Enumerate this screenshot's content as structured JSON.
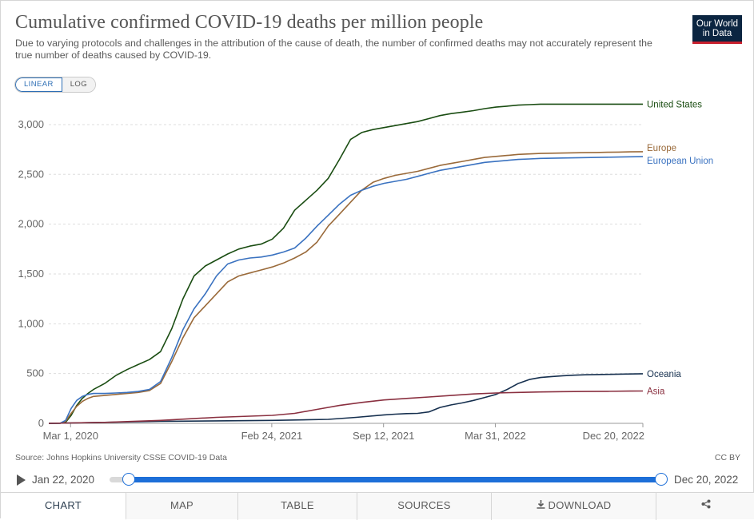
{
  "header": {
    "title": "Cumulative confirmed COVID-19 deaths per million people",
    "subtitle": "Due to varying protocols and challenges in the attribution of the cause of death, the number of confirmed deaths may not accurately represent the true number of deaths caused by COVID-19.",
    "logo_line1": "Our World",
    "logo_line2": "in Data"
  },
  "scale_toggle": {
    "linear": "LINEAR",
    "log": "LOG",
    "selected": "LINEAR"
  },
  "chart_data": {
    "type": "line",
    "title": "Cumulative confirmed COVID-19 deaths per million people",
    "xlabel": "",
    "ylabel": "",
    "x_range": [
      0,
      1063
    ],
    "x_unit": "days since Jan 22, 2020",
    "ylim": [
      0,
      3200
    ],
    "yticks": [
      0,
      500,
      1000,
      1500,
      2000,
      2500,
      3000
    ],
    "ytick_labels": [
      "0",
      "500",
      "1,000",
      "1,500",
      "2,000",
      "2,500",
      "3,000"
    ],
    "xticks": [
      39,
      399,
      599,
      799,
      1063
    ],
    "xtick_labels": [
      "Mar 1, 2020",
      "Feb 24, 2021",
      "Sep 12, 2021",
      "Mar 31, 2022",
      "Dec 20, 2022"
    ],
    "grid": "horizontal dashed",
    "legend": "right end labels",
    "series": [
      {
        "name": "United States",
        "color": "#1a4d12",
        "x": [
          0,
          20,
          30,
          40,
          50,
          60,
          70,
          80,
          100,
          120,
          140,
          160,
          180,
          200,
          220,
          240,
          260,
          280,
          300,
          320,
          340,
          360,
          380,
          400,
          420,
          440,
          460,
          480,
          500,
          520,
          540,
          560,
          580,
          600,
          620,
          640,
          660,
          680,
          700,
          720,
          740,
          760,
          780,
          800,
          820,
          840,
          860,
          880,
          900,
          920,
          940,
          960,
          980,
          1000,
          1020,
          1040,
          1063
        ],
        "y": [
          0,
          0,
          10,
          80,
          180,
          250,
          300,
          340,
          400,
          480,
          540,
          590,
          640,
          720,
          950,
          1250,
          1480,
          1580,
          1640,
          1700,
          1750,
          1780,
          1800,
          1850,
          1960,
          2140,
          2240,
          2340,
          2460,
          2650,
          2850,
          2920,
          2950,
          2970,
          2990,
          3010,
          3030,
          3060,
          3090,
          3110,
          3125,
          3140,
          3160,
          3175,
          3185,
          3195,
          3200,
          3205,
          3205,
          3205,
          3205,
          3205,
          3205,
          3205,
          3205,
          3205,
          3205
        ]
      },
      {
        "name": "Europe",
        "color": "#9a6a3a",
        "x": [
          0,
          20,
          30,
          40,
          50,
          60,
          70,
          80,
          100,
          120,
          140,
          160,
          180,
          200,
          220,
          240,
          260,
          280,
          300,
          320,
          340,
          360,
          380,
          400,
          420,
          440,
          460,
          480,
          500,
          520,
          540,
          560,
          580,
          600,
          620,
          640,
          660,
          680,
          700,
          720,
          740,
          760,
          780,
          800,
          820,
          840,
          860,
          880,
          900,
          920,
          940,
          960,
          980,
          1000,
          1020,
          1040,
          1063
        ],
        "y": [
          0,
          0,
          20,
          100,
          170,
          220,
          250,
          270,
          280,
          290,
          300,
          310,
          330,
          400,
          620,
          860,
          1060,
          1180,
          1300,
          1420,
          1480,
          1510,
          1540,
          1570,
          1610,
          1660,
          1720,
          1820,
          1980,
          2100,
          2220,
          2340,
          2420,
          2460,
          2490,
          2510,
          2530,
          2560,
          2590,
          2610,
          2630,
          2650,
          2670,
          2680,
          2690,
          2700,
          2705,
          2710,
          2712,
          2714,
          2716,
          2718,
          2720,
          2722,
          2724,
          2726,
          2728
        ]
      },
      {
        "name": "European Union",
        "color": "#3a72c0",
        "x": [
          0,
          20,
          30,
          40,
          50,
          60,
          70,
          80,
          100,
          120,
          140,
          160,
          180,
          200,
          220,
          240,
          260,
          280,
          300,
          320,
          340,
          360,
          380,
          400,
          420,
          440,
          460,
          480,
          500,
          520,
          540,
          560,
          580,
          600,
          620,
          640,
          660,
          680,
          700,
          720,
          740,
          760,
          780,
          800,
          820,
          840,
          860,
          880,
          900,
          920,
          940,
          960,
          980,
          1000,
          1020,
          1040,
          1063
        ],
        "y": [
          0,
          0,
          30,
          150,
          230,
          270,
          290,
          300,
          300,
          305,
          310,
          320,
          340,
          420,
          660,
          940,
          1150,
          1300,
          1480,
          1600,
          1640,
          1660,
          1670,
          1690,
          1720,
          1760,
          1860,
          1980,
          2090,
          2200,
          2290,
          2340,
          2380,
          2410,
          2430,
          2450,
          2480,
          2510,
          2540,
          2560,
          2580,
          2600,
          2620,
          2630,
          2640,
          2650,
          2655,
          2660,
          2662,
          2664,
          2666,
          2668,
          2670,
          2672,
          2674,
          2676,
          2678
        ]
      },
      {
        "name": "Oceania",
        "color": "#16304f",
        "x": [
          0,
          100,
          200,
          300,
          400,
          500,
          550,
          600,
          620,
          640,
          660,
          680,
          700,
          720,
          740,
          760,
          780,
          800,
          820,
          840,
          860,
          880,
          900,
          920,
          940,
          960,
          980,
          1000,
          1020,
          1040,
          1063
        ],
        "y": [
          0,
          10,
          20,
          25,
          30,
          40,
          60,
          85,
          92,
          98,
          100,
          115,
          160,
          185,
          205,
          230,
          260,
          290,
          340,
          400,
          440,
          460,
          470,
          478,
          484,
          488,
          490,
          492,
          494,
          496,
          498
        ]
      },
      {
        "name": "Asia",
        "color": "#8a3040",
        "x": [
          0,
          100,
          200,
          300,
          400,
          440,
          480,
          520,
          560,
          600,
          640,
          680,
          720,
          760,
          800,
          840,
          880,
          920,
          960,
          1000,
          1040,
          1063
        ],
        "y": [
          0,
          10,
          30,
          60,
          80,
          100,
          140,
          180,
          210,
          235,
          250,
          265,
          280,
          295,
          305,
          310,
          315,
          318,
          320,
          322,
          324,
          325
        ]
      }
    ]
  },
  "footer": {
    "source": "Source: Johns Hopkins University CSSE COVID-19 Data",
    "license": "CC BY"
  },
  "timeline": {
    "start_label": "Jan 22, 2020",
    "end_label": "Dec 20, 2022"
  },
  "tabs": [
    {
      "label": "CHART"
    },
    {
      "label": "MAP"
    },
    {
      "label": "TABLE"
    },
    {
      "label": "SOURCES"
    },
    {
      "label": "DOWNLOAD"
    },
    {
      "label": ""
    }
  ],
  "icons": [
    "play-icon",
    "download-icon",
    "share-icon"
  ]
}
